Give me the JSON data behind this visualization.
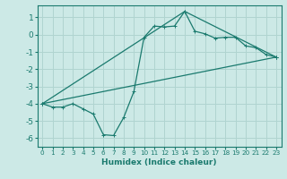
{
  "xlabel": "Humidex (Indice chaleur)",
  "background_color": "#cce9e6",
  "grid_color": "#b0d4d0",
  "line_color": "#1a7a6e",
  "xlim": [
    -0.5,
    23.5
  ],
  "ylim": [
    -6.5,
    1.7
  ],
  "xticks": [
    0,
    1,
    2,
    3,
    4,
    5,
    6,
    7,
    8,
    9,
    10,
    11,
    12,
    13,
    14,
    15,
    16,
    17,
    18,
    19,
    20,
    21,
    22,
    23
  ],
  "yticks": [
    1,
    0,
    -1,
    -2,
    -3,
    -4,
    -5,
    -6
  ],
  "curve1_x": [
    0,
    1,
    2,
    3,
    4,
    5,
    6,
    7,
    8,
    9,
    10,
    11,
    12,
    13,
    14,
    15,
    16,
    17,
    18,
    19,
    20,
    21,
    22,
    23
  ],
  "curve1_y": [
    -4.0,
    -4.2,
    -4.2,
    -4.0,
    -4.3,
    -4.6,
    -5.8,
    -5.85,
    -4.8,
    -3.3,
    -0.15,
    0.5,
    0.45,
    0.5,
    1.35,
    0.2,
    0.05,
    -0.2,
    -0.15,
    -0.15,
    -0.65,
    -0.75,
    -1.15,
    -1.3
  ],
  "curve2_x": [
    0,
    23
  ],
  "curve2_y": [
    -4.0,
    -1.3
  ],
  "curve3_x": [
    0,
    14,
    23
  ],
  "curve3_y": [
    -4.0,
    1.35,
    -1.3
  ],
  "markersize": 2.0
}
